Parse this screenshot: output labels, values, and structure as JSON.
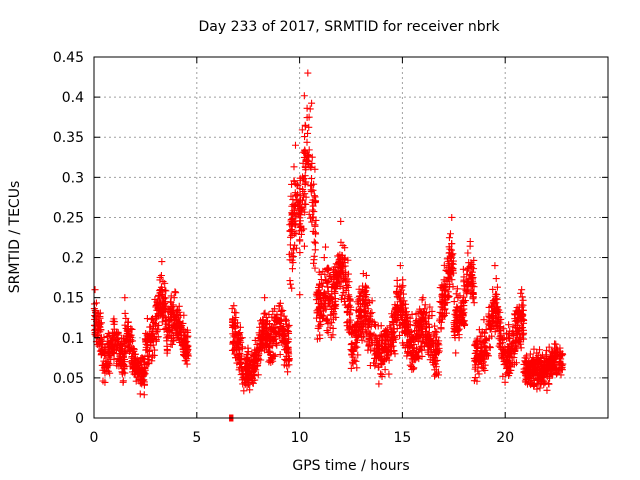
{
  "chart_data": {
    "type": "scatter",
    "title": "Day 233 of 2017, SRMTID for receiver nbrk",
    "xlabel": "GPS time / hours",
    "ylabel": "SRMTID / TECUs",
    "xlim": [
      0,
      25
    ],
    "ylim": [
      0,
      0.45
    ],
    "xticks": [
      0,
      5,
      10,
      15,
      20
    ],
    "xtick_labels": [
      "0",
      "5",
      "10",
      "15",
      "20"
    ],
    "yticks": [
      0,
      0.05,
      0.1,
      0.15,
      0.2,
      0.25,
      0.3,
      0.35,
      0.4,
      0.45
    ],
    "ytick_labels": [
      "0",
      "0.05",
      "0.1",
      "0.15",
      "0.2",
      "0.25",
      "0.3",
      "0.35",
      "0.4",
      "0.45"
    ],
    "grid": true,
    "marker": "+",
    "marker_color": "#ff0000",
    "series": [
      {
        "name": "nbrk",
        "segments": [
          {
            "x_range": [
              0.0,
              0.5
            ],
            "baseline": 0.07,
            "spread": 0.045,
            "peaks": [
              [
                0.05,
                0.16
              ]
            ]
          },
          {
            "x_range": [
              0.5,
              1.5
            ],
            "baseline": 0.065,
            "spread": 0.035,
            "peaks": [
              [
                1.0,
                0.12
              ]
            ]
          },
          {
            "x_range": [
              1.5,
              2.5
            ],
            "baseline": 0.06,
            "spread": 0.035,
            "peaks": [
              [
                1.5,
                0.15
              ]
            ]
          },
          {
            "x_range": [
              2.5,
              3.5
            ],
            "baseline": 0.09,
            "spread": 0.045,
            "peaks": [
              [
                3.3,
                0.195
              ]
            ]
          },
          {
            "x_range": [
              3.5,
              4.6
            ],
            "baseline": 0.09,
            "spread": 0.04,
            "peaks": [
              [
                3.9,
                0.15
              ]
            ]
          },
          {
            "x_range": [
              6.6,
              6.75
            ],
            "baseline": 0.0,
            "spread": 0.0,
            "peaks": []
          },
          {
            "x_range": [
              6.7,
              7.5
            ],
            "baseline": 0.06,
            "spread": 0.04,
            "peaks": [
              [
                6.8,
                0.14
              ]
            ]
          },
          {
            "x_range": [
              7.5,
              8.5
            ],
            "baseline": 0.06,
            "spread": 0.035,
            "peaks": [
              [
                8.3,
                0.15
              ]
            ]
          },
          {
            "x_range": [
              8.5,
              9.5
            ],
            "baseline": 0.085,
            "spread": 0.05,
            "peaks": [
              [
                9.0,
                0.14
              ]
            ]
          },
          {
            "x_range": [
              9.5,
              10.0
            ],
            "baseline": 0.16,
            "spread": 0.08,
            "peaks": [
              [
                9.8,
                0.34
              ]
            ]
          },
          {
            "x_range": [
              10.0,
              10.8
            ],
            "baseline": 0.2,
            "spread": 0.1,
            "peaks": [
              [
                10.4,
                0.43
              ]
            ]
          },
          {
            "x_range": [
              10.8,
              11.5
            ],
            "baseline": 0.12,
            "spread": 0.06,
            "peaks": [
              [
                11.2,
                0.2
              ]
            ]
          },
          {
            "x_range": [
              11.5,
              12.5
            ],
            "baseline": 0.12,
            "spread": 0.06,
            "peaks": [
              [
                12.0,
                0.245
              ]
            ]
          },
          {
            "x_range": [
              12.5,
              14.0
            ],
            "baseline": 0.085,
            "spread": 0.05,
            "peaks": [
              [
                13.1,
                0.18
              ]
            ]
          },
          {
            "x_range": [
              14.0,
              15.5
            ],
            "baseline": 0.085,
            "spread": 0.05,
            "peaks": [
              [
                14.9,
                0.19
              ]
            ]
          },
          {
            "x_range": [
              15.5,
              16.8
            ],
            "baseline": 0.08,
            "spread": 0.045,
            "peaks": [
              [
                16.0,
                0.15
              ]
            ]
          },
          {
            "x_range": [
              16.8,
              17.5
            ],
            "baseline": 0.13,
            "spread": 0.05,
            "peaks": [
              [
                17.4,
                0.25
              ]
            ]
          },
          {
            "x_range": [
              17.5,
              18.5
            ],
            "baseline": 0.12,
            "spread": 0.05,
            "peaks": [
              [
                18.3,
                0.22
              ]
            ]
          },
          {
            "x_range": [
              18.5,
              19.8
            ],
            "baseline": 0.075,
            "spread": 0.04,
            "peaks": [
              [
                19.5,
                0.19
              ]
            ]
          },
          {
            "x_range": [
              19.8,
              20.9
            ],
            "baseline": 0.08,
            "spread": 0.045,
            "peaks": [
              [
                20.8,
                0.16
              ]
            ]
          },
          {
            "x_range": [
              20.9,
              22.8
            ],
            "baseline": 0.06,
            "spread": 0.03,
            "peaks": [
              [
                22.5,
                0.085
              ]
            ]
          }
        ]
      }
    ]
  }
}
